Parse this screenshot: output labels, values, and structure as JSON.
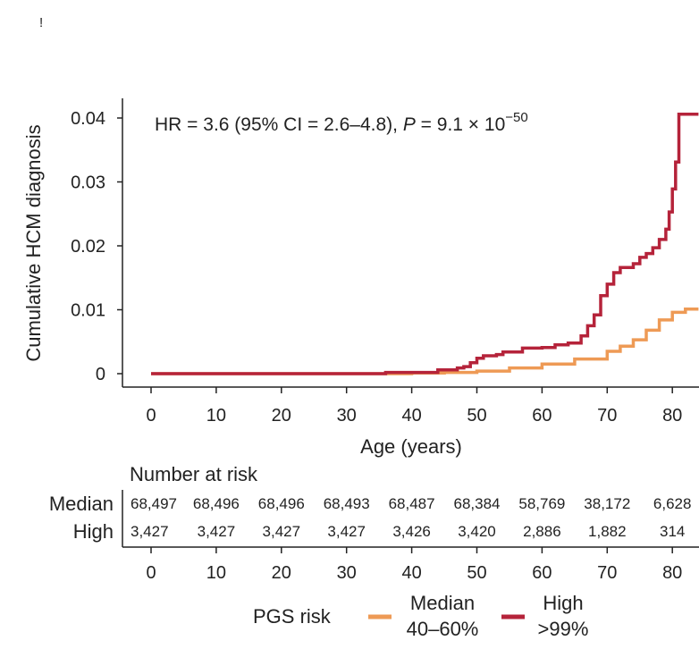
{
  "panel_mark": "!",
  "chart_data": {
    "type": "line",
    "title": "",
    "annotation": {
      "prefix": "HR = 3.6 (95% CI = 2.6–4.8), ",
      "p_symbol": "P",
      "p_rest": " = 9.1 × 10",
      "exponent": "−50"
    },
    "xlabel": "Age (years)",
    "ylabel": "Cumulative HCM diagnosis",
    "xlim": [
      0,
      84
    ],
    "ylim": [
      0,
      0.04
    ],
    "x_ticks": [
      0,
      10,
      20,
      30,
      40,
      50,
      60,
      70,
      80
    ],
    "y_ticks": [
      {
        "value": 0,
        "label": "0"
      },
      {
        "value": 0.01,
        "label": "0.01"
      },
      {
        "value": 0.02,
        "label": "0.02"
      },
      {
        "value": 0.03,
        "label": "0.03"
      },
      {
        "value": 0.04,
        "label": "0.04"
      }
    ],
    "series": [
      {
        "name": "Median",
        "sublabel": "40–60%",
        "color": "#EE9A55",
        "x": [
          0,
          35,
          40,
          45,
          50,
          55,
          60,
          65,
          70,
          72,
          74,
          76,
          78,
          80,
          82,
          84
        ],
        "y": [
          0,
          0,
          0.0001,
          0.0002,
          0.0004,
          0.0009,
          0.0015,
          0.0023,
          0.0035,
          0.0043,
          0.0053,
          0.0068,
          0.0084,
          0.0096,
          0.0101,
          0.0101
        ]
      },
      {
        "name": "High",
        "sublabel": ">99%",
        "color": "#B5233A",
        "x": [
          0,
          35,
          36,
          43,
          44,
          47,
          48,
          49,
          50,
          51,
          53,
          54,
          57,
          60,
          62,
          64,
          66,
          67,
          68,
          69,
          70,
          71,
          72,
          74,
          75,
          76,
          77,
          78,
          79,
          79.5,
          80,
          80.5,
          81,
          84
        ],
        "y": [
          0,
          0,
          0.0002,
          0.0002,
          0.0006,
          0.0009,
          0.0011,
          0.0017,
          0.0024,
          0.0028,
          0.003,
          0.0034,
          0.004,
          0.0041,
          0.0045,
          0.0048,
          0.0059,
          0.0075,
          0.0092,
          0.0122,
          0.014,
          0.0158,
          0.0166,
          0.0172,
          0.0182,
          0.0188,
          0.0197,
          0.021,
          0.0226,
          0.0253,
          0.0289,
          0.0331,
          0.0406,
          0.0406
        ]
      }
    ],
    "risk_table": {
      "title": "Number at risk",
      "rows": [
        {
          "label": "Median",
          "values": [
            "68,497",
            "68,496",
            "68,496",
            "68,493",
            "68,487",
            "68,384",
            "58,769",
            "38,172",
            "6,628"
          ]
        },
        {
          "label": "High",
          "values": [
            "3,427",
            "3,427",
            "3,427",
            "3,427",
            "3,426",
            "3,420",
            "2,886",
            "1,882",
            "314"
          ]
        }
      ],
      "x_ticks": [
        0,
        10,
        20,
        30,
        40,
        50,
        60,
        70,
        80
      ]
    },
    "legend": {
      "title": "PGS risk",
      "placement": "bottom"
    }
  }
}
